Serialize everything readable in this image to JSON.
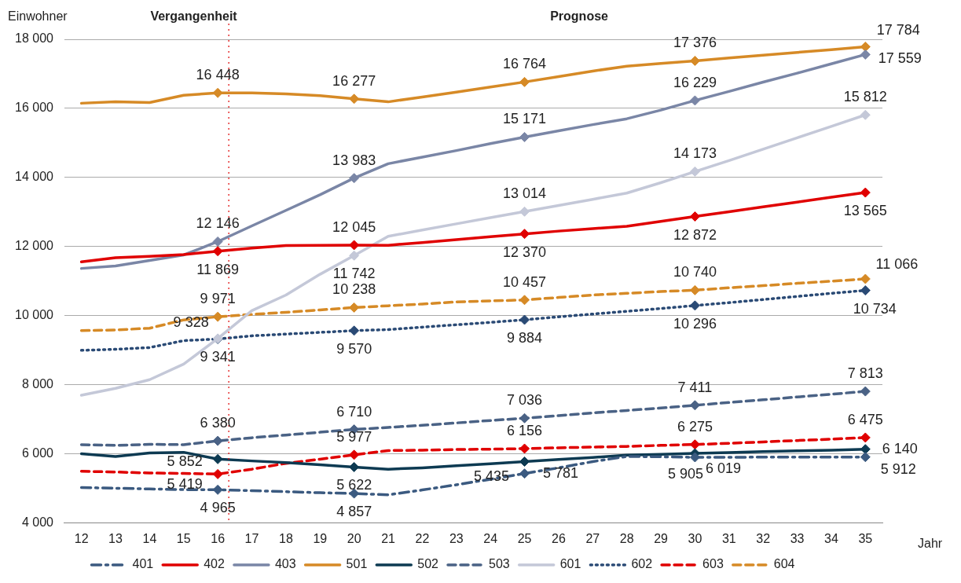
{
  "chart_data": {
    "type": "line",
    "ylabel": "Einwohner",
    "xlabel": "Jahr",
    "annotations": [
      "Vergangenheit",
      "Prognose"
    ],
    "categories": [
      "12",
      "13",
      "14",
      "15",
      "16",
      "17",
      "18",
      "19",
      "20",
      "21",
      "22",
      "23",
      "24",
      "25",
      "26",
      "27",
      "28",
      "29",
      "30",
      "31",
      "32",
      "33",
      "34",
      "35"
    ],
    "ylim": [
      4000,
      18000
    ],
    "yticks": [
      {
        "value": 4000,
        "label": "4 000"
      },
      {
        "value": 6000,
        "label": "6 000"
      },
      {
        "value": 8000,
        "label": "8 000"
      },
      {
        "value": 10000,
        "label": "10 000"
      },
      {
        "value": 12000,
        "label": "12 000"
      },
      {
        "value": 14000,
        "label": "14 000"
      },
      {
        "value": 16000,
        "label": "16 000"
      },
      {
        "value": 18000,
        "label": "18 000"
      }
    ],
    "grid": "y",
    "legend": "bottom",
    "ref_lines": [
      {
        "axis": "x",
        "value": "16",
        "color": "#e00000",
        "line_style": "dotted"
      }
    ],
    "series": [
      {
        "name": "401",
        "color": "#3b5a80",
        "line_style": "dashdot",
        "values": [
          5030,
          5010,
          4990,
          4970,
          4965,
          4940,
          4910,
          4880,
          4857,
          4820,
          4960,
          5110,
          5270,
          5435,
          5600,
          5780,
          5930,
          5920,
          5905,
          5905,
          5910,
          5910,
          5910,
          5912
        ],
        "value_labels": [
          null,
          null,
          null,
          null,
          "4 965",
          null,
          null,
          null,
          "4 857",
          null,
          null,
          null,
          null,
          "5 435",
          null,
          null,
          null,
          null,
          "5 905",
          null,
          null,
          null,
          null,
          "5 912"
        ]
      },
      {
        "name": "402",
        "color": "#e00000",
        "line_style": "solid",
        "values": [
          11560,
          11680,
          11720,
          11770,
          11869,
          11960,
          12030,
          12040,
          12045,
          12040,
          12120,
          12200,
          12290,
          12370,
          12450,
          12520,
          12590,
          12730,
          12872,
          13010,
          13150,
          13290,
          13430,
          13565
        ],
        "value_labels": [
          null,
          null,
          null,
          null,
          "11 869",
          null,
          null,
          null,
          "12 045",
          null,
          null,
          null,
          null,
          "12 370",
          null,
          null,
          null,
          null,
          "12 872",
          null,
          null,
          null,
          null,
          "13 565"
        ]
      },
      {
        "name": "403",
        "color": "#7a86a6",
        "line_style": "solid",
        "values": [
          11370,
          11440,
          11600,
          11760,
          12146,
          12600,
          13050,
          13500,
          13983,
          14400,
          14590,
          14780,
          14980,
          15171,
          15350,
          15530,
          15700,
          15950,
          16229,
          16490,
          16760,
          17020,
          17290,
          17559
        ],
        "value_labels": [
          null,
          null,
          null,
          null,
          "12 146",
          null,
          null,
          null,
          "13 983",
          null,
          null,
          null,
          null,
          "15 171",
          null,
          null,
          null,
          null,
          "16 229",
          null,
          null,
          null,
          null,
          "17 559"
        ]
      },
      {
        "name": "501",
        "color": "#d68a26",
        "line_style": "solid",
        "values": [
          16150,
          16190,
          16170,
          16380,
          16448,
          16450,
          16420,
          16370,
          16277,
          16190,
          16330,
          16470,
          16620,
          16764,
          16920,
          17080,
          17220,
          17300,
          17376,
          17460,
          17540,
          17620,
          17700,
          17784
        ],
        "value_labels": [
          null,
          null,
          null,
          null,
          "16 448",
          null,
          null,
          null,
          "16 277",
          null,
          null,
          null,
          null,
          "16 764",
          null,
          null,
          null,
          null,
          "17 376",
          null,
          null,
          null,
          null,
          "17 784"
        ]
      },
      {
        "name": "502",
        "color": "#0d3a52",
        "line_style": "solid",
        "values": [
          6010,
          5930,
          6030,
          6050,
          5852,
          5800,
          5750,
          5690,
          5622,
          5560,
          5600,
          5660,
          5720,
          5781,
          5840,
          5900,
          5970,
          5990,
          6019,
          6040,
          6070,
          6090,
          6110,
          6140
        ],
        "value_labels": [
          null,
          null,
          null,
          null,
          "5 852",
          null,
          null,
          null,
          "5 622",
          null,
          null,
          null,
          null,
          "5 781",
          null,
          null,
          null,
          null,
          "6 019",
          null,
          null,
          null,
          null,
          "6 140"
        ]
      },
      {
        "name": "503",
        "color": "#4a6285",
        "line_style": "dashed",
        "values": [
          6270,
          6250,
          6280,
          6270,
          6380,
          6470,
          6550,
          6630,
          6710,
          6770,
          6830,
          6900,
          6970,
          7036,
          7110,
          7190,
          7260,
          7330,
          7411,
          7490,
          7570,
          7650,
          7730,
          7813
        ],
        "value_labels": [
          null,
          null,
          null,
          null,
          "6 380",
          null,
          null,
          null,
          "6 710",
          null,
          null,
          null,
          null,
          "7 036",
          null,
          null,
          null,
          null,
          "7 411",
          null,
          null,
          null,
          null,
          "7 813"
        ]
      },
      {
        "name": "601",
        "color": "#c4c8d8",
        "line_style": "solid",
        "values": [
          7700,
          7900,
          8150,
          8600,
          9341,
          10150,
          10600,
          11200,
          11742,
          12300,
          12480,
          12660,
          12840,
          13014,
          13190,
          13370,
          13550,
          13850,
          14173,
          14490,
          14820,
          15150,
          15480,
          15812
        ],
        "value_labels": [
          null,
          null,
          null,
          null,
          "9 341",
          null,
          null,
          null,
          "11 742",
          null,
          null,
          null,
          null,
          "13 014",
          null,
          null,
          null,
          null,
          "14 173",
          null,
          null,
          null,
          null,
          "15 812"
        ]
      },
      {
        "name": "602",
        "color": "#2a4a75",
        "line_style": "dotted",
        "values": [
          9000,
          9030,
          9080,
          9280,
          9328,
          9420,
          9470,
          9520,
          9570,
          9600,
          9670,
          9740,
          9810,
          9884,
          9970,
          10050,
          10130,
          10210,
          10296,
          10380,
          10470,
          10560,
          10650,
          10734
        ],
        "value_labels": [
          null,
          null,
          null,
          null,
          "9 328",
          null,
          null,
          null,
          "9 570",
          null,
          null,
          null,
          null,
          "9 884",
          null,
          null,
          null,
          null,
          "10 296",
          null,
          null,
          null,
          null,
          "10 734"
        ]
      },
      {
        "name": "603",
        "color": "#e00000",
        "line_style": "dashed",
        "values": [
          5500,
          5480,
          5450,
          5440,
          5419,
          5560,
          5730,
          5850,
          5977,
          6100,
          6110,
          6130,
          6140,
          6156,
          6180,
          6200,
          6220,
          6250,
          6275,
          6310,
          6350,
          6390,
          6430,
          6475
        ],
        "value_labels": [
          null,
          null,
          null,
          null,
          "5 419",
          null,
          null,
          null,
          "5 977",
          null,
          null,
          null,
          null,
          "6 156",
          null,
          null,
          null,
          null,
          "6 275",
          null,
          null,
          null,
          null,
          "6 475"
        ]
      },
      {
        "name": "604",
        "color": "#d68a26",
        "line_style": "dashed",
        "values": [
          9570,
          9590,
          9640,
          9880,
          9971,
          10040,
          10100,
          10170,
          10238,
          10290,
          10340,
          10400,
          10430,
          10457,
          10530,
          10600,
          10650,
          10700,
          10740,
          10810,
          10870,
          10940,
          11000,
          11066
        ],
        "value_labels": [
          null,
          null,
          null,
          null,
          "9 971",
          null,
          null,
          null,
          "10 238",
          null,
          null,
          null,
          null,
          "10 457",
          null,
          null,
          null,
          null,
          "10 740",
          null,
          null,
          null,
          null,
          "11 066"
        ]
      }
    ]
  }
}
